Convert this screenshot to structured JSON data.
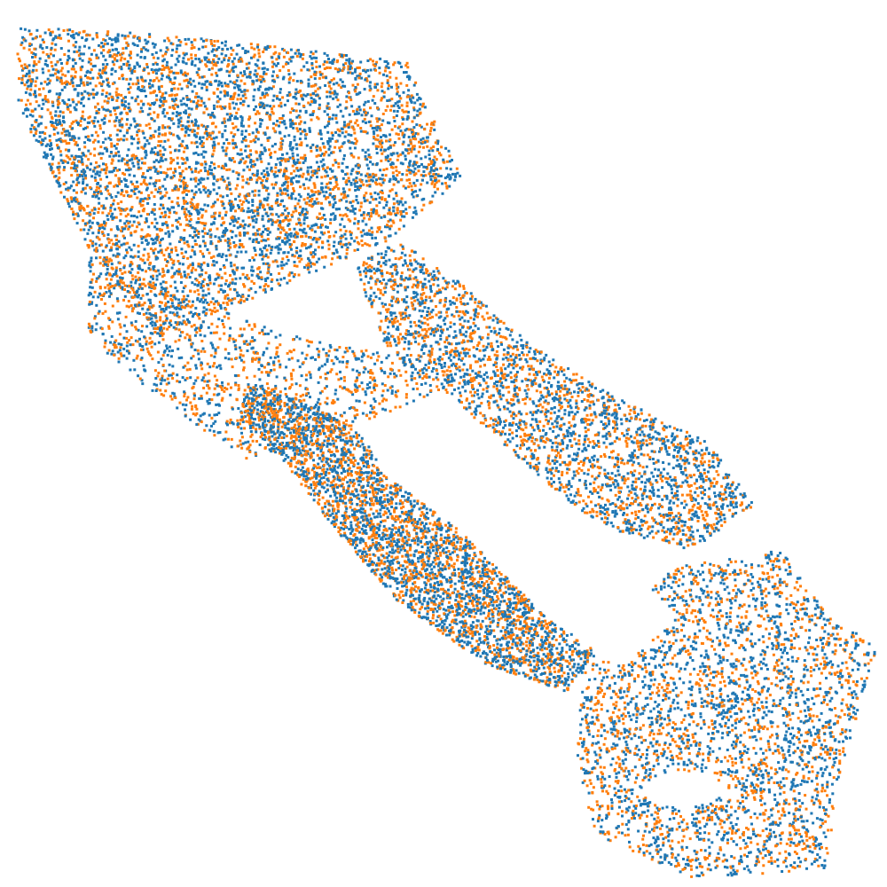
{
  "chart_data": {
    "type": "scatter",
    "title": "",
    "xlabel": "",
    "ylabel": "",
    "axes_visible": false,
    "grid": false,
    "legend": "none",
    "xlim": [
      0,
      1
    ],
    "ylim": [
      0,
      1
    ],
    "series": [
      {
        "color": "#1f77b4",
        "approx_point_count": 9000,
        "point_density_regions": [
          {
            "shape": "polygon",
            "weight": 3.0,
            "vertices": [
              [
                0.02,
                0.97
              ],
              [
                0.2,
                0.96
              ],
              [
                0.46,
                0.93
              ],
              [
                0.52,
                0.8
              ],
              [
                0.44,
                0.73
              ],
              [
                0.3,
                0.67
              ],
              [
                0.18,
                0.62
              ],
              [
                0.1,
                0.72
              ],
              [
                0.02,
                0.88
              ]
            ]
          },
          {
            "shape": "polygon",
            "weight": 1.6,
            "vertices": [
              [
                0.45,
                0.73
              ],
              [
                0.52,
                0.68
              ],
              [
                0.6,
                0.61
              ],
              [
                0.68,
                0.56
              ],
              [
                0.8,
                0.5
              ],
              [
                0.85,
                0.43
              ],
              [
                0.78,
                0.38
              ],
              [
                0.7,
                0.4
              ],
              [
                0.6,
                0.45
              ],
              [
                0.5,
                0.52
              ],
              [
                0.43,
                0.62
              ],
              [
                0.4,
                0.7
              ]
            ]
          },
          {
            "shape": "polygon",
            "weight": 0.6,
            "vertices": [
              [
                0.1,
                0.72
              ],
              [
                0.22,
                0.66
              ],
              [
                0.34,
                0.62
              ],
              [
                0.44,
                0.6
              ],
              [
                0.48,
                0.55
              ],
              [
                0.4,
                0.52
              ],
              [
                0.28,
                0.48
              ],
              [
                0.18,
                0.55
              ],
              [
                0.1,
                0.62
              ]
            ]
          },
          {
            "shape": "polygon",
            "weight": 2.0,
            "vertices": [
              [
                0.28,
                0.57
              ],
              [
                0.36,
                0.54
              ],
              [
                0.45,
                0.48
              ],
              [
                0.55,
                0.38
              ],
              [
                0.67,
                0.26
              ],
              [
                0.64,
                0.22
              ],
              [
                0.55,
                0.25
              ],
              [
                0.45,
                0.32
              ],
              [
                0.38,
                0.4
              ],
              [
                0.32,
                0.48
              ],
              [
                0.27,
                0.53
              ]
            ]
          },
          {
            "shape": "polygon",
            "weight": 1.8,
            "vertices": [
              [
                0.66,
                0.27
              ],
              [
                0.76,
                0.36
              ],
              [
                0.88,
                0.38
              ],
              [
                0.93,
                0.31
              ],
              [
                0.99,
                0.27
              ],
              [
                0.95,
                0.14
              ],
              [
                0.93,
                0.02
              ],
              [
                0.78,
                0.01
              ],
              [
                0.67,
                0.06
              ],
              [
                0.65,
                0.15
              ]
            ]
          }
        ]
      },
      {
        "color": "#ff7f0e",
        "approx_point_count": 7000,
        "point_density_regions": [
          {
            "shape": "polygon",
            "weight": 3.0,
            "vertices": [
              [
                0.02,
                0.97
              ],
              [
                0.2,
                0.96
              ],
              [
                0.46,
                0.93
              ],
              [
                0.52,
                0.8
              ],
              [
                0.44,
                0.73
              ],
              [
                0.3,
                0.67
              ],
              [
                0.18,
                0.62
              ],
              [
                0.1,
                0.72
              ],
              [
                0.02,
                0.88
              ]
            ]
          },
          {
            "shape": "polygon",
            "weight": 1.6,
            "vertices": [
              [
                0.45,
                0.73
              ],
              [
                0.52,
                0.68
              ],
              [
                0.6,
                0.61
              ],
              [
                0.68,
                0.56
              ],
              [
                0.8,
                0.5
              ],
              [
                0.85,
                0.43
              ],
              [
                0.78,
                0.38
              ],
              [
                0.7,
                0.4
              ],
              [
                0.6,
                0.45
              ],
              [
                0.5,
                0.52
              ],
              [
                0.43,
                0.62
              ],
              [
                0.4,
                0.7
              ]
            ]
          },
          {
            "shape": "polygon",
            "weight": 0.8,
            "vertices": [
              [
                0.1,
                0.72
              ],
              [
                0.22,
                0.66
              ],
              [
                0.34,
                0.62
              ],
              [
                0.44,
                0.6
              ],
              [
                0.48,
                0.55
              ],
              [
                0.4,
                0.52
              ],
              [
                0.28,
                0.48
              ],
              [
                0.18,
                0.55
              ],
              [
                0.1,
                0.62
              ]
            ]
          },
          {
            "shape": "polygon",
            "weight": 2.0,
            "vertices": [
              [
                0.28,
                0.57
              ],
              [
                0.36,
                0.54
              ],
              [
                0.45,
                0.48
              ],
              [
                0.55,
                0.38
              ],
              [
                0.67,
                0.26
              ],
              [
                0.64,
                0.22
              ],
              [
                0.55,
                0.25
              ],
              [
                0.45,
                0.32
              ],
              [
                0.38,
                0.4
              ],
              [
                0.32,
                0.48
              ],
              [
                0.27,
                0.53
              ]
            ]
          },
          {
            "shape": "polygon",
            "weight": 1.8,
            "vertices": [
              [
                0.66,
                0.27
              ],
              [
                0.76,
                0.36
              ],
              [
                0.88,
                0.38
              ],
              [
                0.93,
                0.31
              ],
              [
                0.99,
                0.27
              ],
              [
                0.95,
                0.14
              ],
              [
                0.93,
                0.02
              ],
              [
                0.78,
                0.01
              ],
              [
                0.67,
                0.06
              ],
              [
                0.65,
                0.15
              ]
            ]
          }
        ]
      }
    ],
    "holes": [
      {
        "shape": "polygon",
        "vertices": [
          [
            0.4,
            0.52
          ],
          [
            0.5,
            0.56
          ],
          [
            0.6,
            0.47
          ],
          [
            0.7,
            0.38
          ],
          [
            0.76,
            0.3
          ],
          [
            0.7,
            0.25
          ],
          [
            0.62,
            0.3
          ],
          [
            0.52,
            0.4
          ],
          [
            0.44,
            0.46
          ]
        ]
      },
      {
        "shape": "ellipse",
        "center": [
          0.77,
          0.11
        ],
        "radii": [
          0.045,
          0.02
        ]
      }
    ]
  }
}
